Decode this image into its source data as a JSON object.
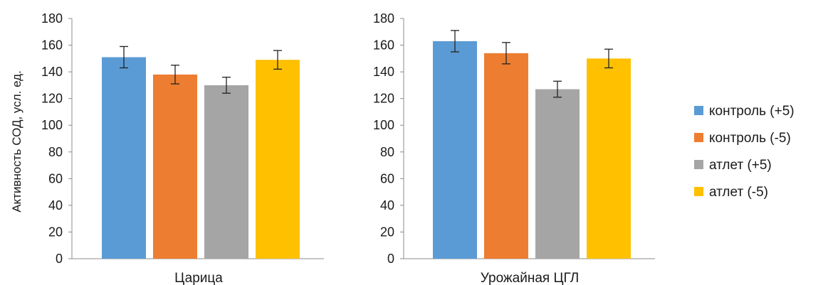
{
  "chart_data": {
    "type": "bar",
    "ylabel": "Активность СОД, усл. ед.",
    "ylim": [
      0,
      180
    ],
    "yticks": [
      0,
      20,
      40,
      60,
      80,
      100,
      120,
      140,
      160,
      180
    ],
    "grid": false,
    "legend_position": "right",
    "panels": [
      {
        "category": "Царица",
        "values": [
          151,
          138,
          130,
          149
        ],
        "errors": [
          8,
          7,
          6,
          7
        ]
      },
      {
        "category": "Урожайная ЦГЛ",
        "values": [
          163,
          154,
          127,
          150
        ],
        "errors": [
          8,
          8,
          6,
          7
        ]
      }
    ],
    "series": [
      {
        "name": "контроль (+5)",
        "color": "#5b9bd5"
      },
      {
        "name": "контроль (-5)",
        "color": "#ed7d31"
      },
      {
        "name": "атлет (+5)",
        "color": "#a5a5a5"
      },
      {
        "name": "атлет (-5)",
        "color": "#ffc000"
      }
    ]
  }
}
